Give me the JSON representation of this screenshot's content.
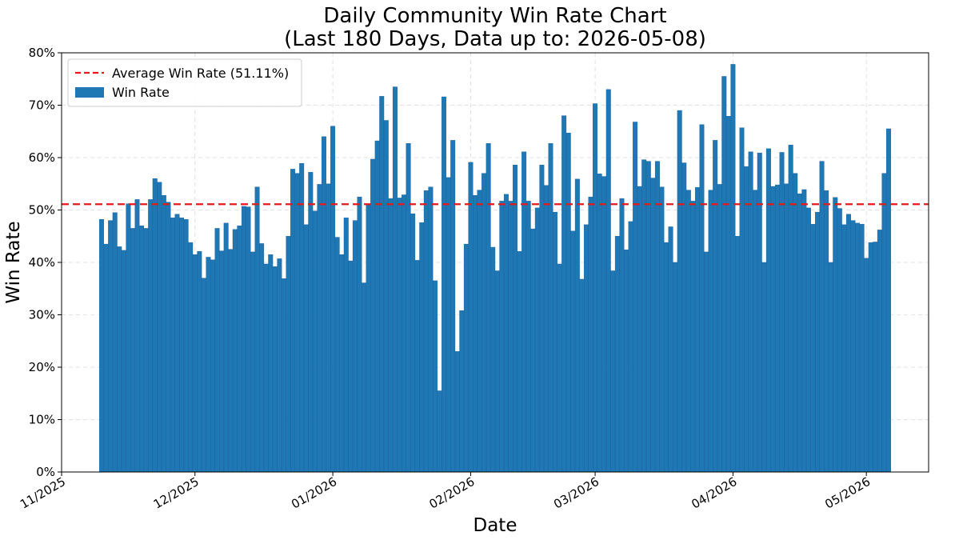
{
  "chart_data": {
    "type": "bar",
    "title_lines": [
      "Daily Community Win Rate Chart",
      "(Last 180 Days, Data up to: 2026-05-08)"
    ],
    "xlabel": "Date",
    "ylabel": "Win Rate",
    "x_start": "2025-11-10",
    "x_end": "2026-05-08",
    "xlim": [
      "2025-11-01",
      "2026-05-15"
    ],
    "ylim": [
      0,
      80
    ],
    "x_ticks": [
      "11/2025",
      "12/2025",
      "01/2026",
      "02/2026",
      "03/2026",
      "04/2026",
      "05/2026"
    ],
    "x_tick_dates": [
      "2025-11-01",
      "2025-12-01",
      "2026-01-01",
      "2026-02-01",
      "2026-03-01",
      "2026-04-01",
      "2026-05-01"
    ],
    "y_ticks": [
      "0%",
      "10%",
      "20%",
      "30%",
      "40%",
      "50%",
      "60%",
      "70%",
      "80%"
    ],
    "y_tick_values": [
      0,
      10,
      20,
      30,
      40,
      50,
      60,
      70,
      80
    ],
    "grid": true,
    "legend_position": "top-left",
    "colors": {
      "bar": "#1f77b4",
      "bar_edge": "#1a5f9a",
      "average_line": "#e8191c"
    },
    "average": {
      "label": "Average Win Rate (51.11%)",
      "value": 51.11
    },
    "series": [
      {
        "name": "Win Rate",
        "values": [
          48.2,
          43.5,
          48.0,
          49.5,
          43.0,
          42.3,
          51.2,
          46.5,
          52.0,
          47.0,
          46.5,
          52.0,
          56.0,
          55.3,
          52.8,
          51.5,
          48.5,
          49.2,
          48.5,
          48.2,
          43.8,
          41.5,
          42.1,
          37.0,
          41.0,
          40.5,
          46.5,
          42.2,
          47.5,
          42.5,
          46.3,
          47.0,
          50.7,
          50.6,
          42.0,
          54.4,
          43.6,
          39.7,
          41.5,
          39.2,
          40.7,
          36.9,
          45.0,
          57.8,
          57.0,
          58.9,
          47.2,
          57.2,
          49.8,
          54.9,
          64.0,
          55.0,
          66.0,
          44.8,
          41.5,
          48.5,
          40.3,
          48.0,
          52.5,
          36.1,
          51.0,
          59.7,
          63.2,
          71.7,
          67.1,
          52.2,
          73.5,
          52.3,
          52.9,
          62.7,
          49.3,
          40.4,
          47.6,
          53.7,
          54.4,
          36.5,
          15.5,
          71.6,
          56.2,
          63.3,
          23.0,
          30.8,
          43.5,
          59.1,
          52.8,
          53.8,
          57.0,
          62.7,
          42.9,
          38.4,
          51.7,
          53.0,
          51.7,
          58.6,
          42.1,
          61.1,
          51.7,
          46.4,
          50.4,
          58.6,
          54.7,
          62.7,
          49.6,
          39.7,
          68.0,
          64.7,
          46.0,
          55.9,
          36.8,
          47.2,
          52.5,
          70.3,
          56.9,
          56.4,
          73.0,
          38.4,
          45.0,
          52.2,
          42.4,
          47.8,
          66.8,
          54.5,
          59.6,
          59.3,
          56.1,
          59.3,
          54.4,
          43.8,
          46.8,
          40.0,
          69.0,
          59.0,
          53.8,
          51.7,
          54.3,
          66.3,
          42.0,
          53.8,
          63.3,
          54.9,
          75.5,
          67.9,
          77.8,
          45.0,
          65.7,
          58.3,
          61.1,
          53.8,
          60.9,
          40.0,
          61.7,
          54.5,
          54.8,
          61.0,
          55.0,
          62.4,
          57.0,
          53.1,
          53.9,
          50.4,
          47.3,
          49.6,
          59.3,
          53.7,
          40.0,
          52.4,
          50.3,
          47.2,
          49.2,
          48.0,
          47.5,
          47.3,
          40.8,
          43.8,
          43.9,
          46.2,
          57.0,
          65.5
        ]
      }
    ]
  }
}
